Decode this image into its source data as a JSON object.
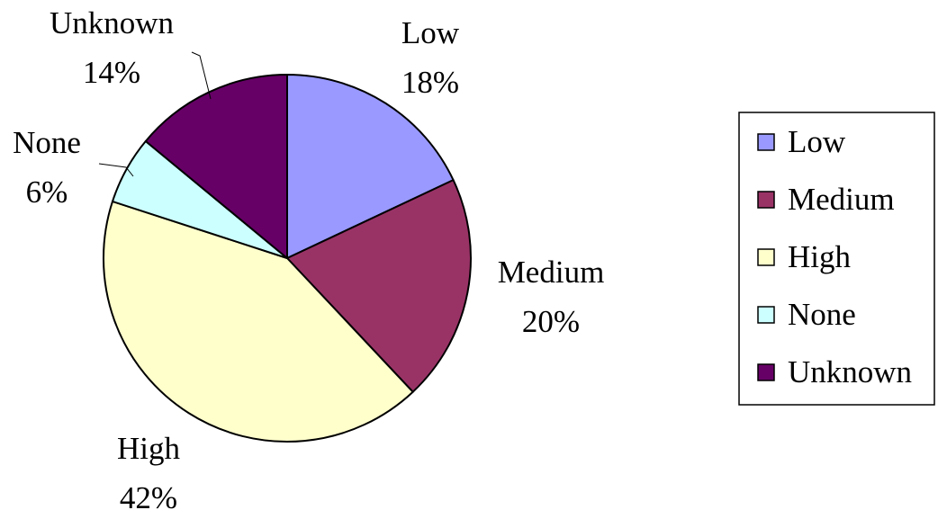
{
  "chart_data": {
    "type": "pie",
    "categories": [
      "Low",
      "Medium",
      "High",
      "None",
      "Unknown"
    ],
    "values": [
      18,
      20,
      42,
      6,
      14
    ],
    "value_labels": [
      "18%",
      "20%",
      "42%",
      "6%",
      "14%"
    ],
    "colors": [
      "#9999ff",
      "#993366",
      "#ffffcc",
      "#ccffff",
      "#660066"
    ],
    "start_angle_deg": 0,
    "direction": "clockwise",
    "legend": {
      "placement": "right",
      "entries": [
        "Low",
        "Medium",
        "High",
        "None",
        "Unknown"
      ]
    }
  }
}
